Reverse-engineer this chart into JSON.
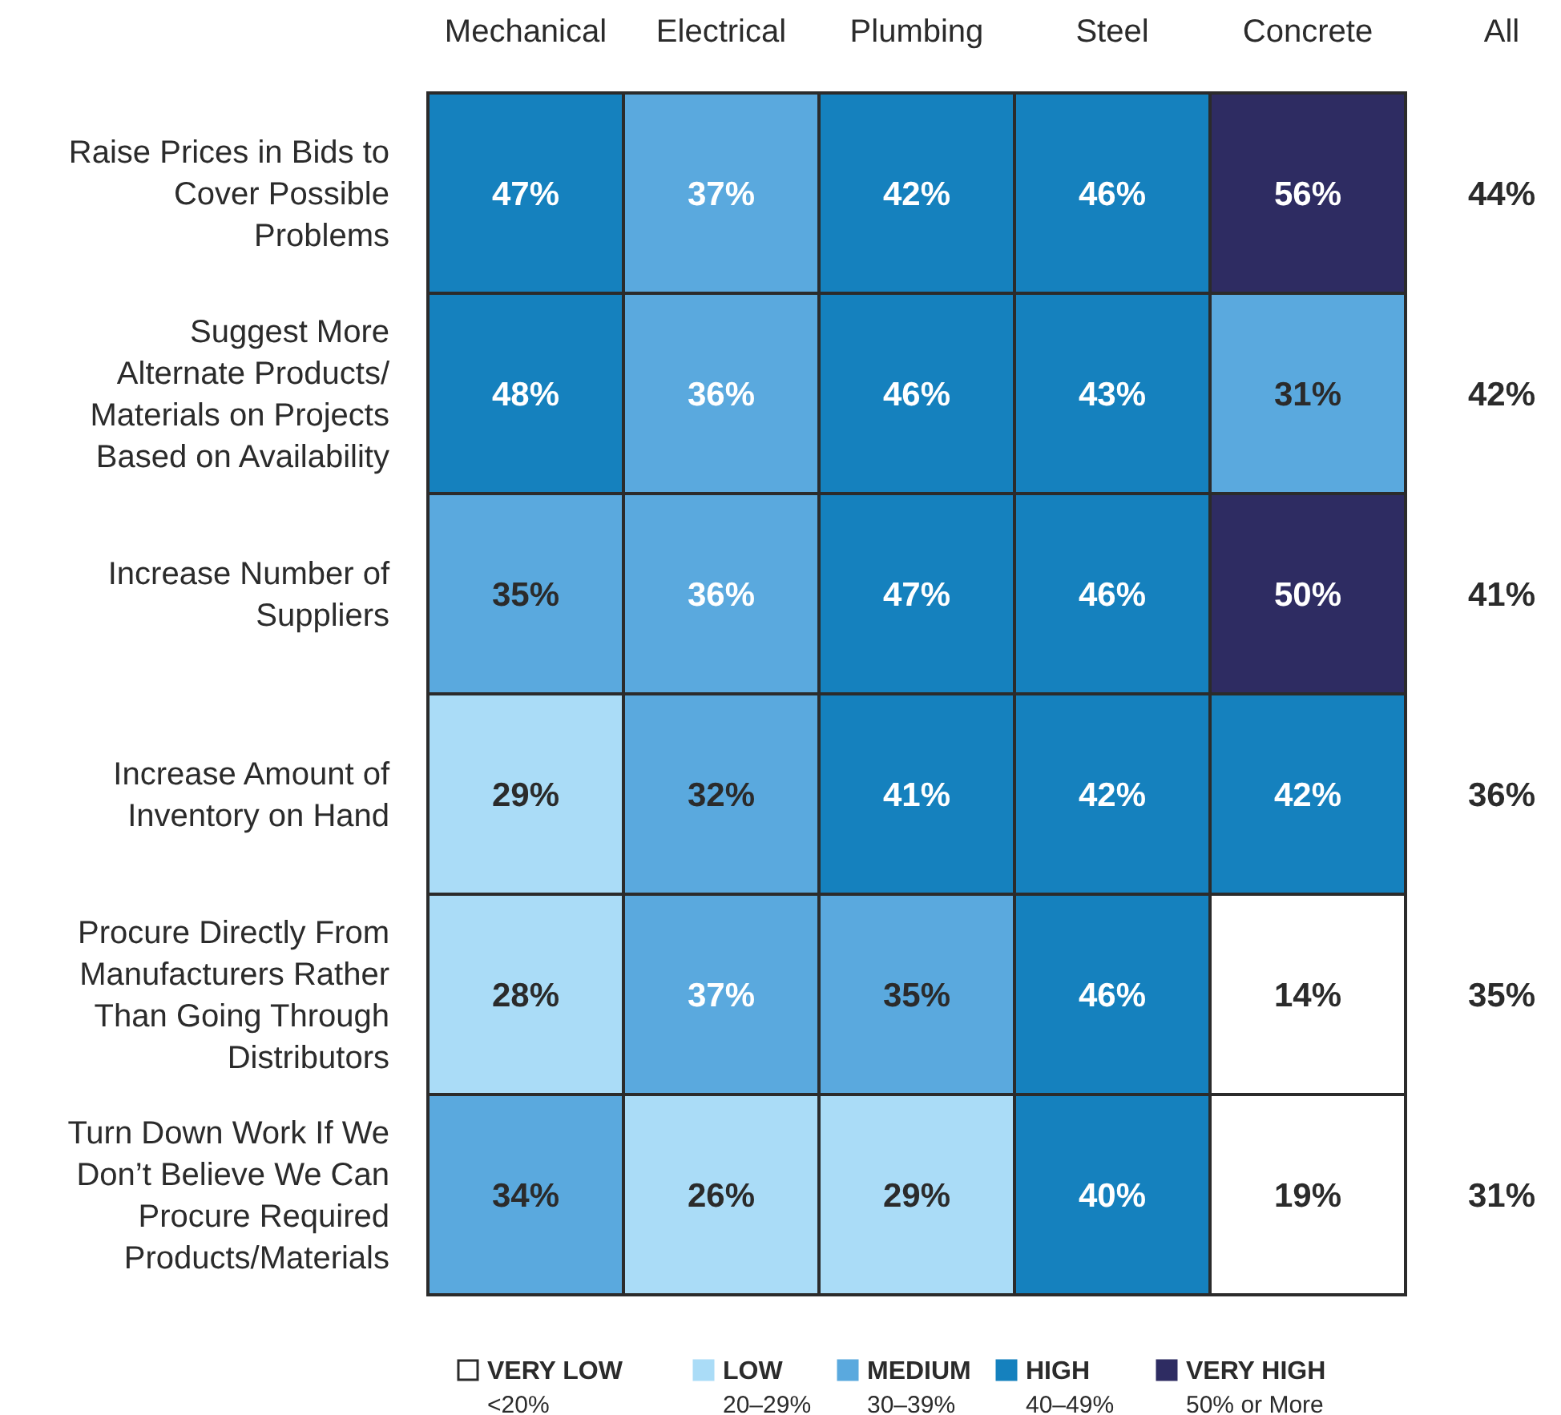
{
  "chart_data": {
    "type": "heatmap",
    "categories": [
      "Mechanical",
      "Electrical",
      "Plumbing",
      "Steel",
      "Concrete"
    ],
    "y_categories": [
      "Raise Prices in Bids to Cover Possible Problems",
      "Suggest More Alternate Products/ Materials on Projects Based on Availability",
      "Increase Number of Suppliers",
      "Increase Amount of Inventory on Hand",
      "Procure Directly From Manufacturers Rather Than Going Through Distributors",
      "Turn Down Work If We Don’t Believe We Can Procure Required Products/Materials"
    ],
    "y2label": "All",
    "y2_categories": [
      "44%",
      "42%",
      "41%",
      "36%",
      "35%",
      "31%"
    ],
    "cells": [
      [
        47,
        37,
        42,
        46,
        56
      ],
      [
        48,
        36,
        46,
        43,
        31
      ],
      [
        35,
        36,
        47,
        46,
        50
      ],
      [
        29,
        32,
        41,
        42,
        42
      ],
      [
        28,
        37,
        35,
        46,
        14
      ],
      [
        34,
        26,
        29,
        40,
        19
      ]
    ],
    "cell_labels": [
      [
        "47%",
        "37%",
        "42%",
        "46%",
        "56%"
      ],
      [
        "48%",
        "36%",
        "46%",
        "43%",
        "31%"
      ],
      [
        "35%",
        "36%",
        "47%",
        "46%",
        "50%"
      ],
      [
        "29%",
        "32%",
        "41%",
        "42%",
        "42%"
      ],
      [
        "28%",
        "37%",
        "35%",
        "46%",
        "14%"
      ],
      [
        "34%",
        "26%",
        "29%",
        "40%",
        "19%"
      ]
    ],
    "colors": [
      "#ffffff",
      "#aadcf7",
      "#5aa9de",
      "#1581be",
      "#2e2c62"
    ],
    "annotations": [
      "VERY LOW",
      "<20%",
      "LOW",
      "20–29%",
      "MEDIUM",
      "30–39%",
      "HIGH",
      "40–49%",
      "VERY HIGH",
      "50% or More"
    ],
    "data_labels": true
  }
}
